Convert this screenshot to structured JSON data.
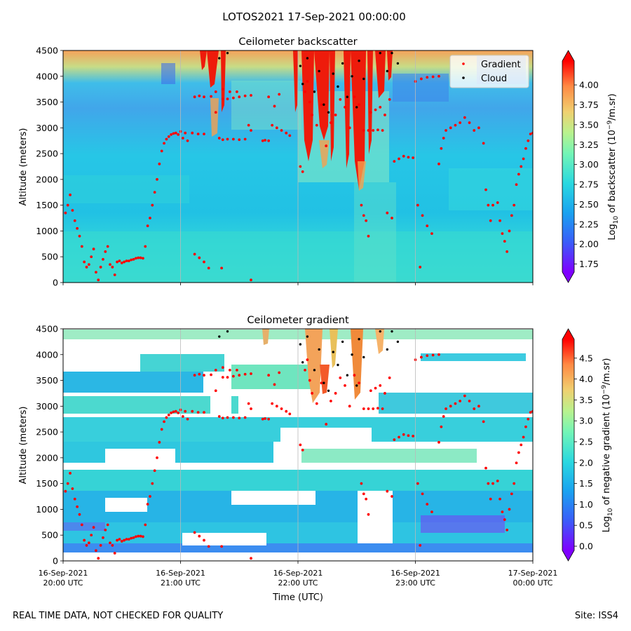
{
  "figure": {
    "suptitle": "LOTOS2021 17-Sep-2021 00:00:00",
    "footer_left": "REAL TIME DATA, NOT CHECKED FOR QUALITY",
    "footer_right": "Site: ISS4"
  },
  "chart_data": [
    {
      "type": "heatmap",
      "id": "backscatter",
      "title": "Ceilometer backscatter",
      "xlabel": "",
      "ylabel": "Altitude (meters)",
      "ylim": [
        0,
        4500
      ],
      "yticks": [
        0,
        500,
        1000,
        1500,
        2000,
        2500,
        3000,
        3500,
        4000,
        4500
      ],
      "ytick_labels": [
        "0",
        "500",
        "1000",
        "1500",
        "2000",
        "2500",
        "3000",
        "3500",
        "4000",
        "4500"
      ],
      "xlim_hours": [
        20,
        24
      ],
      "colorbar": {
        "label_prefix": "Log",
        "label_sub": "10",
        "label_mid": " of backscatter (10",
        "label_sup": "−9",
        "label_suffix": "/m.sr)",
        "range": [
          1.65,
          4.3
        ],
        "ticks": [
          1.75,
          2.0,
          2.25,
          2.5,
          2.75,
          3.0,
          3.25,
          3.5,
          3.75,
          4.0
        ],
        "tick_labels": [
          "1.75",
          "2.00",
          "2.25",
          "2.50",
          "2.75",
          "3.00",
          "3.25",
          "3.50",
          "3.75",
          "4.00"
        ]
      },
      "legend": {
        "position": "top-right",
        "entries": [
          {
            "label": "Gradient",
            "color": "#ff0000"
          },
          {
            "label": "Cloud",
            "color": "#000000"
          }
        ]
      }
    },
    {
      "type": "heatmap",
      "id": "gradient",
      "title": "Ceilometer gradient",
      "xlabel": "Time (UTC)",
      "ylabel": "Altitude (meters)",
      "ylim": [
        0,
        4500
      ],
      "yticks": [
        0,
        500,
        1000,
        1500,
        2000,
        2500,
        3000,
        3500,
        4000,
        4500
      ],
      "ytick_labels": [
        "0",
        "500",
        "1000",
        "1500",
        "2000",
        "2500",
        "3000",
        "3500",
        "4000",
        "4500"
      ],
      "xlim_hours": [
        20,
        24
      ],
      "xticks_hours": [
        20,
        21,
        22,
        23,
        24
      ],
      "xtick_labels": [
        [
          "16-Sep-2021",
          "20:00 UTC"
        ],
        [
          "16-Sep-2021",
          "21:00 UTC"
        ],
        [
          "16-Sep-2021",
          "22:00 UTC"
        ],
        [
          "16-Sep-2021",
          "23:00 UTC"
        ],
        [
          "17-Sep-2021",
          "00:00 UTC"
        ]
      ],
      "colorbar": {
        "label_prefix": "Log",
        "label_sub": "10",
        "label_mid": " of negative gradient (10",
        "label_sup": "−9",
        "label_suffix": "/m.sr)",
        "range": [
          -0.1,
          4.95
        ],
        "ticks": [
          0.0,
          0.5,
          1.0,
          1.5,
          2.0,
          2.5,
          3.0,
          3.5,
          4.0,
          4.5
        ],
        "tick_labels": [
          "0.0",
          "0.5",
          "1.0",
          "1.5",
          "2.0",
          "2.5",
          "3.0",
          "3.5",
          "4.0",
          "4.5"
        ]
      }
    }
  ],
  "gradient_points": [
    {
      "t": 20.02,
      "z": 1350
    },
    {
      "t": 20.04,
      "z": 1500
    },
    {
      "t": 20.06,
      "z": 1700
    },
    {
      "t": 20.08,
      "z": 1400
    },
    {
      "t": 20.1,
      "z": 1200
    },
    {
      "t": 20.12,
      "z": 1050
    },
    {
      "t": 20.14,
      "z": 900
    },
    {
      "t": 20.16,
      "z": 700
    },
    {
      "t": 20.18,
      "z": 400
    },
    {
      "t": 20.2,
      "z": 300
    },
    {
      "t": 20.22,
      "z": 350
    },
    {
      "t": 20.24,
      "z": 500
    },
    {
      "t": 20.26,
      "z": 650
    },
    {
      "t": 20.28,
      "z": 200
    },
    {
      "t": 20.3,
      "z": 50
    },
    {
      "t": 20.32,
      "z": 300
    },
    {
      "t": 20.34,
      "z": 450
    },
    {
      "t": 20.36,
      "z": 600
    },
    {
      "t": 20.38,
      "z": 700
    },
    {
      "t": 20.4,
      "z": 350
    },
    {
      "t": 20.42,
      "z": 300
    },
    {
      "t": 20.44,
      "z": 150
    },
    {
      "t": 20.46,
      "z": 400
    },
    {
      "t": 20.48,
      "z": 420
    },
    {
      "t": 20.5,
      "z": 380
    },
    {
      "t": 20.52,
      "z": 400
    },
    {
      "t": 20.54,
      "z": 420
    },
    {
      "t": 20.56,
      "z": 420
    },
    {
      "t": 20.58,
      "z": 440
    },
    {
      "t": 20.6,
      "z": 450
    },
    {
      "t": 20.62,
      "z": 470
    },
    {
      "t": 20.64,
      "z": 480
    },
    {
      "t": 20.66,
      "z": 480
    },
    {
      "t": 20.68,
      "z": 470
    },
    {
      "t": 20.7,
      "z": 700
    },
    {
      "t": 20.72,
      "z": 1100
    },
    {
      "t": 20.74,
      "z": 1250
    },
    {
      "t": 20.76,
      "z": 1500
    },
    {
      "t": 20.78,
      "z": 1750
    },
    {
      "t": 20.8,
      "z": 2000
    },
    {
      "t": 20.82,
      "z": 2300
    },
    {
      "t": 20.84,
      "z": 2550
    },
    {
      "t": 20.86,
      "z": 2700
    },
    {
      "t": 20.88,
      "z": 2780
    },
    {
      "t": 20.9,
      "z": 2830
    },
    {
      "t": 20.92,
      "z": 2870
    },
    {
      "t": 20.94,
      "z": 2890
    },
    {
      "t": 20.96,
      "z": 2900
    },
    {
      "t": 20.98,
      "z": 2870
    },
    {
      "t": 21.0,
      "z": 2930
    },
    {
      "t": 21.02,
      "z": 2800
    },
    {
      "t": 21.04,
      "z": 2900
    },
    {
      "t": 21.06,
      "z": 2750
    },
    {
      "t": 21.1,
      "z": 2900
    },
    {
      "t": 21.15,
      "z": 2880
    },
    {
      "t": 21.2,
      "z": 2880
    },
    {
      "t": 21.12,
      "z": 3600
    },
    {
      "t": 21.16,
      "z": 3620
    },
    {
      "t": 21.2,
      "z": 3600
    },
    {
      "t": 21.26,
      "z": 3610
    },
    {
      "t": 21.12,
      "z": 550
    },
    {
      "t": 21.16,
      "z": 480
    },
    {
      "t": 21.2,
      "z": 400
    },
    {
      "t": 21.24,
      "z": 280
    },
    {
      "t": 21.3,
      "z": 3700
    },
    {
      "t": 21.33,
      "z": 2800
    },
    {
      "t": 21.36,
      "z": 2770
    },
    {
      "t": 21.4,
      "z": 2780
    },
    {
      "t": 21.45,
      "z": 2780
    },
    {
      "t": 21.5,
      "z": 2770
    },
    {
      "t": 21.55,
      "z": 2780
    },
    {
      "t": 21.3,
      "z": 3300
    },
    {
      "t": 21.36,
      "z": 3560
    },
    {
      "t": 21.4,
      "z": 3560
    },
    {
      "t": 21.45,
      "z": 3580
    },
    {
      "t": 21.5,
      "z": 3600
    },
    {
      "t": 21.55,
      "z": 3620
    },
    {
      "t": 21.6,
      "z": 3630
    },
    {
      "t": 21.36,
      "z": 3750
    },
    {
      "t": 21.42,
      "z": 3700
    },
    {
      "t": 21.48,
      "z": 3700
    },
    {
      "t": 21.35,
      "z": 280
    },
    {
      "t": 21.6,
      "z": 50
    },
    {
      "t": 21.58,
      "z": 3050
    },
    {
      "t": 21.6,
      "z": 2950
    },
    {
      "t": 21.7,
      "z": 2750
    },
    {
      "t": 21.72,
      "z": 2760
    },
    {
      "t": 21.75,
      "z": 2750
    },
    {
      "t": 21.78,
      "z": 3050
    },
    {
      "t": 21.82,
      "z": 3000
    },
    {
      "t": 21.86,
      "z": 2950
    },
    {
      "t": 21.9,
      "z": 2900
    },
    {
      "t": 21.93,
      "z": 2850
    },
    {
      "t": 21.75,
      "z": 3600
    },
    {
      "t": 21.8,
      "z": 3420
    },
    {
      "t": 21.84,
      "z": 3650
    },
    {
      "t": 22.02,
      "z": 2250
    },
    {
      "t": 22.04,
      "z": 2150
    },
    {
      "t": 22.06,
      "z": 3700
    },
    {
      "t": 22.08,
      "z": 3900
    },
    {
      "t": 22.1,
      "z": 3500
    },
    {
      "t": 22.12,
      "z": 3250
    },
    {
      "t": 22.16,
      "z": 3050
    },
    {
      "t": 22.2,
      "z": 3450
    },
    {
      "t": 22.24,
      "z": 2650
    },
    {
      "t": 22.28,
      "z": 3100
    },
    {
      "t": 22.32,
      "z": 3250
    },
    {
      "t": 22.36,
      "z": 3550
    },
    {
      "t": 22.4,
      "z": 3400
    },
    {
      "t": 22.44,
      "z": 3000
    },
    {
      "t": 22.48,
      "z": 3600
    },
    {
      "t": 22.52,
      "z": 3450
    },
    {
      "t": 22.54,
      "z": 1500
    },
    {
      "t": 22.56,
      "z": 1300
    },
    {
      "t": 22.58,
      "z": 1200
    },
    {
      "t": 22.6,
      "z": 900
    },
    {
      "t": 22.56,
      "z": 2950
    },
    {
      "t": 22.6,
      "z": 2950
    },
    {
      "t": 22.64,
      "z": 2950
    },
    {
      "t": 22.68,
      "z": 2960
    },
    {
      "t": 22.72,
      "z": 2950
    },
    {
      "t": 22.62,
      "z": 3300
    },
    {
      "t": 22.66,
      "z": 3350
    },
    {
      "t": 22.7,
      "z": 3400
    },
    {
      "t": 22.74,
      "z": 3250
    },
    {
      "t": 22.78,
      "z": 3550
    },
    {
      "t": 22.76,
      "z": 1350
    },
    {
      "t": 22.8,
      "z": 1250
    },
    {
      "t": 22.82,
      "z": 2350
    },
    {
      "t": 22.86,
      "z": 2400
    },
    {
      "t": 22.9,
      "z": 2450
    },
    {
      "t": 22.94,
      "z": 2430
    },
    {
      "t": 22.98,
      "z": 2420
    },
    {
      "t": 23.0,
      "z": 3900
    },
    {
      "t": 23.05,
      "z": 3950
    },
    {
      "t": 23.1,
      "z": 3980
    },
    {
      "t": 23.15,
      "z": 3990
    },
    {
      "t": 23.2,
      "z": 4000
    },
    {
      "t": 23.02,
      "z": 1500
    },
    {
      "t": 23.06,
      "z": 1300
    },
    {
      "t": 23.1,
      "z": 1100
    },
    {
      "t": 23.14,
      "z": 950
    },
    {
      "t": 23.04,
      "z": 300
    },
    {
      "t": 23.2,
      "z": 2300
    },
    {
      "t": 23.22,
      "z": 2600
    },
    {
      "t": 23.24,
      "z": 2800
    },
    {
      "t": 23.26,
      "z": 2950
    },
    {
      "t": 23.3,
      "z": 3000
    },
    {
      "t": 23.34,
      "z": 3050
    },
    {
      "t": 23.38,
      "z": 3100
    },
    {
      "t": 23.42,
      "z": 3200
    },
    {
      "t": 23.46,
      "z": 3100
    },
    {
      "t": 23.5,
      "z": 2950
    },
    {
      "t": 23.54,
      "z": 3000
    },
    {
      "t": 23.58,
      "z": 2700
    },
    {
      "t": 23.6,
      "z": 1800
    },
    {
      "t": 23.62,
      "z": 1500
    },
    {
      "t": 23.64,
      "z": 1200
    },
    {
      "t": 23.66,
      "z": 1500
    },
    {
      "t": 23.7,
      "z": 1550
    },
    {
      "t": 23.72,
      "z": 1200
    },
    {
      "t": 23.74,
      "z": 950
    },
    {
      "t": 23.76,
      "z": 800
    },
    {
      "t": 23.78,
      "z": 600
    },
    {
      "t": 23.8,
      "z": 1000
    },
    {
      "t": 23.82,
      "z": 1300
    },
    {
      "t": 23.84,
      "z": 1500
    },
    {
      "t": 23.86,
      "z": 1900
    },
    {
      "t": 23.88,
      "z": 2100
    },
    {
      "t": 23.9,
      "z": 2250
    },
    {
      "t": 23.92,
      "z": 2400
    },
    {
      "t": 23.94,
      "z": 2600
    },
    {
      "t": 23.96,
      "z": 2750
    },
    {
      "t": 23.98,
      "z": 2880
    },
    {
      "t": 24.0,
      "z": 2900
    }
  ],
  "cloud_points": [
    {
      "t": 21.33,
      "z": 4350
    },
    {
      "t": 21.4,
      "z": 4450
    },
    {
      "t": 22.02,
      "z": 4200
    },
    {
      "t": 22.04,
      "z": 3850
    },
    {
      "t": 22.08,
      "z": 4350
    },
    {
      "t": 22.14,
      "z": 3700
    },
    {
      "t": 22.18,
      "z": 4100
    },
    {
      "t": 22.22,
      "z": 3450
    },
    {
      "t": 22.26,
      "z": 3300
    },
    {
      "t": 22.3,
      "z": 4050
    },
    {
      "t": 22.34,
      "z": 3800
    },
    {
      "t": 22.38,
      "z": 4250
    },
    {
      "t": 22.42,
      "z": 3600
    },
    {
      "t": 22.46,
      "z": 4000
    },
    {
      "t": 22.5,
      "z": 3400
    },
    {
      "t": 22.52,
      "z": 4300
    },
    {
      "t": 22.56,
      "z": 3950
    },
    {
      "t": 22.7,
      "z": 4450
    },
    {
      "t": 22.76,
      "z": 4100
    },
    {
      "t": 22.8,
      "z": 4450
    },
    {
      "t": 22.85,
      "z": 4250
    }
  ]
}
